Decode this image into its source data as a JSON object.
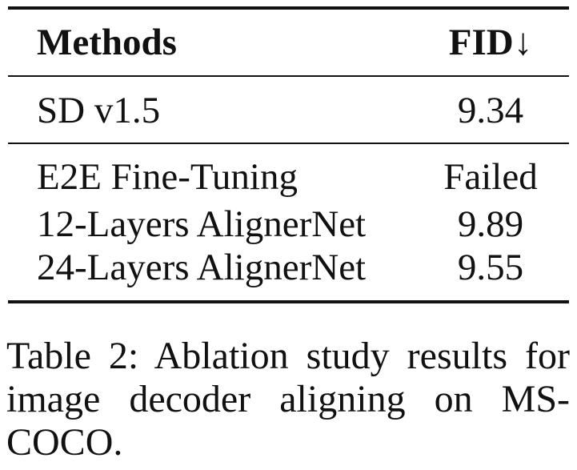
{
  "table": {
    "header": {
      "methods": "Methods",
      "fid": "FID↓"
    },
    "rows": [
      {
        "method": "SD v1.5",
        "fid": "9.34"
      },
      {
        "method": "E2E Fine-Tuning",
        "fid": "Failed"
      },
      {
        "method": "12-Layers AlignerNet",
        "fid": "9.89"
      },
      {
        "method": "24-Layers AlignerNet",
        "fid": "9.55"
      }
    ]
  },
  "caption": "Table 2: Ablation study results for image decoder aligning on MS-COCO."
}
